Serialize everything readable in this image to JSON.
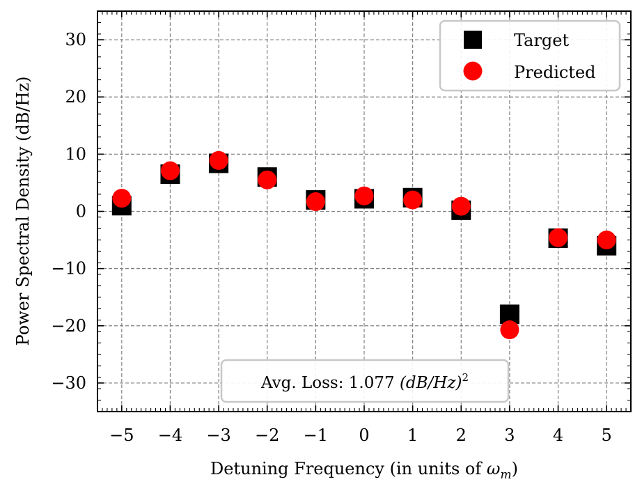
{
  "chart_data": {
    "type": "scatter",
    "xlabel": "Detuning Frequency (in units of ",
    "xlabel_symbol": "ω",
    "xlabel_subscript": "m",
    "xlabel_end": ")",
    "ylabel": "Power Spectral Density (dB/Hz)",
    "xlim": [
      -5.5,
      5.5
    ],
    "ylim": [
      -35,
      35
    ],
    "x_ticks": [
      -5,
      -4,
      -3,
      -2,
      -1,
      0,
      1,
      2,
      3,
      4,
      5
    ],
    "x_tick_labels": [
      "−5",
      "−4",
      "−3",
      "−2",
      "−1",
      "0",
      "1",
      "2",
      "3",
      "4",
      "5"
    ],
    "y_ticks": [
      -30,
      -20,
      -10,
      0,
      10,
      20,
      30
    ],
    "y_tick_labels": [
      "−30",
      "−20",
      "−10",
      "0",
      "10",
      "20",
      "30"
    ],
    "grid": true,
    "legend_position": "top-right",
    "series": [
      {
        "name": "Target",
        "marker": "square",
        "color": "#000000",
        "x": [
          -5,
          -4,
          -3,
          -2,
          -1,
          0,
          1,
          2,
          3,
          4,
          5
        ],
        "y": [
          1.0,
          6.5,
          8.4,
          6.0,
          2.0,
          2.2,
          2.4,
          0.2,
          -18.0,
          -4.7,
          -6.0
        ]
      },
      {
        "name": "Predicted",
        "marker": "circle",
        "color": "#ff0000",
        "x": [
          -5,
          -4,
          -3,
          -2,
          -1,
          0,
          1,
          2,
          3,
          4,
          5
        ],
        "y": [
          2.3,
          7.1,
          8.9,
          5.5,
          1.7,
          2.7,
          2.0,
          0.9,
          -20.7,
          -4.6,
          -5.0
        ]
      }
    ],
    "annotation": {
      "text": "Avg. Loss: 1.077 ",
      "math": "(dB/Hz)",
      "power": "2",
      "position": "bottom-center"
    }
  }
}
